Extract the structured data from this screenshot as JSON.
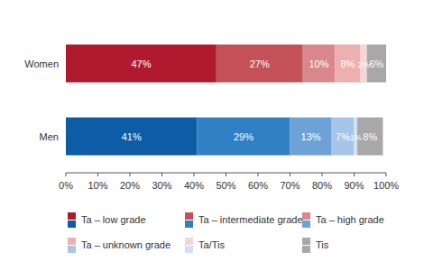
{
  "chart_data": {
    "type": "bar",
    "orientation": "horizontal",
    "stacked": true,
    "data_labels": true,
    "grid": false,
    "legend": "bottom",
    "categories": [
      "Women",
      "Men"
    ],
    "xlim": [
      0,
      100
    ],
    "xticks": [
      {
        "value": 0,
        "label": "0%"
      },
      {
        "value": 10,
        "label": "10%"
      },
      {
        "value": 20,
        "label": "20%"
      },
      {
        "value": 30,
        "label": "30%"
      },
      {
        "value": 40,
        "label": "40%"
      },
      {
        "value": 50,
        "label": "50%"
      },
      {
        "value": 60,
        "label": "60%"
      },
      {
        "value": 70,
        "label": "70%"
      },
      {
        "value": 80,
        "label": "80%"
      },
      {
        "value": 90,
        "label": "90%"
      },
      {
        "value": 100,
        "label": "100%"
      }
    ],
    "series": [
      {
        "name": "Ta – low grade",
        "colors": [
          "#b01a2e",
          "#0c5ca6"
        ],
        "values": [
          47,
          41
        ],
        "value_labels": [
          "47%",
          "41%"
        ]
      },
      {
        "name": "Ta – intermediate grade",
        "colors": [
          "#c55158",
          "#2f80c4"
        ],
        "values": [
          27,
          29
        ],
        "value_labels": [
          "27%",
          "29%"
        ]
      },
      {
        "name": "Ta – high grade",
        "colors": [
          "#d8878a",
          "#6da2d6"
        ],
        "values": [
          10,
          13
        ],
        "value_labels": [
          "10%",
          "13%"
        ]
      },
      {
        "name": "Ta – unknown grade",
        "colors": [
          "#ecb0b1",
          "#a6c5e8"
        ],
        "values": [
          8,
          7
        ],
        "value_labels": [
          "8%",
          "7%"
        ]
      },
      {
        "name": "Ta/Tis",
        "colors": [
          "#f6d5d5",
          "#d3e2f3"
        ],
        "values": [
          2,
          1
        ],
        "value_labels": [
          "2%",
          "1%"
        ]
      },
      {
        "name": "Tis",
        "colors": [
          "#a8a8a8",
          "#a8a8a8"
        ],
        "values": [
          6,
          8
        ],
        "value_labels": [
          "6%",
          "8%"
        ]
      }
    ]
  }
}
